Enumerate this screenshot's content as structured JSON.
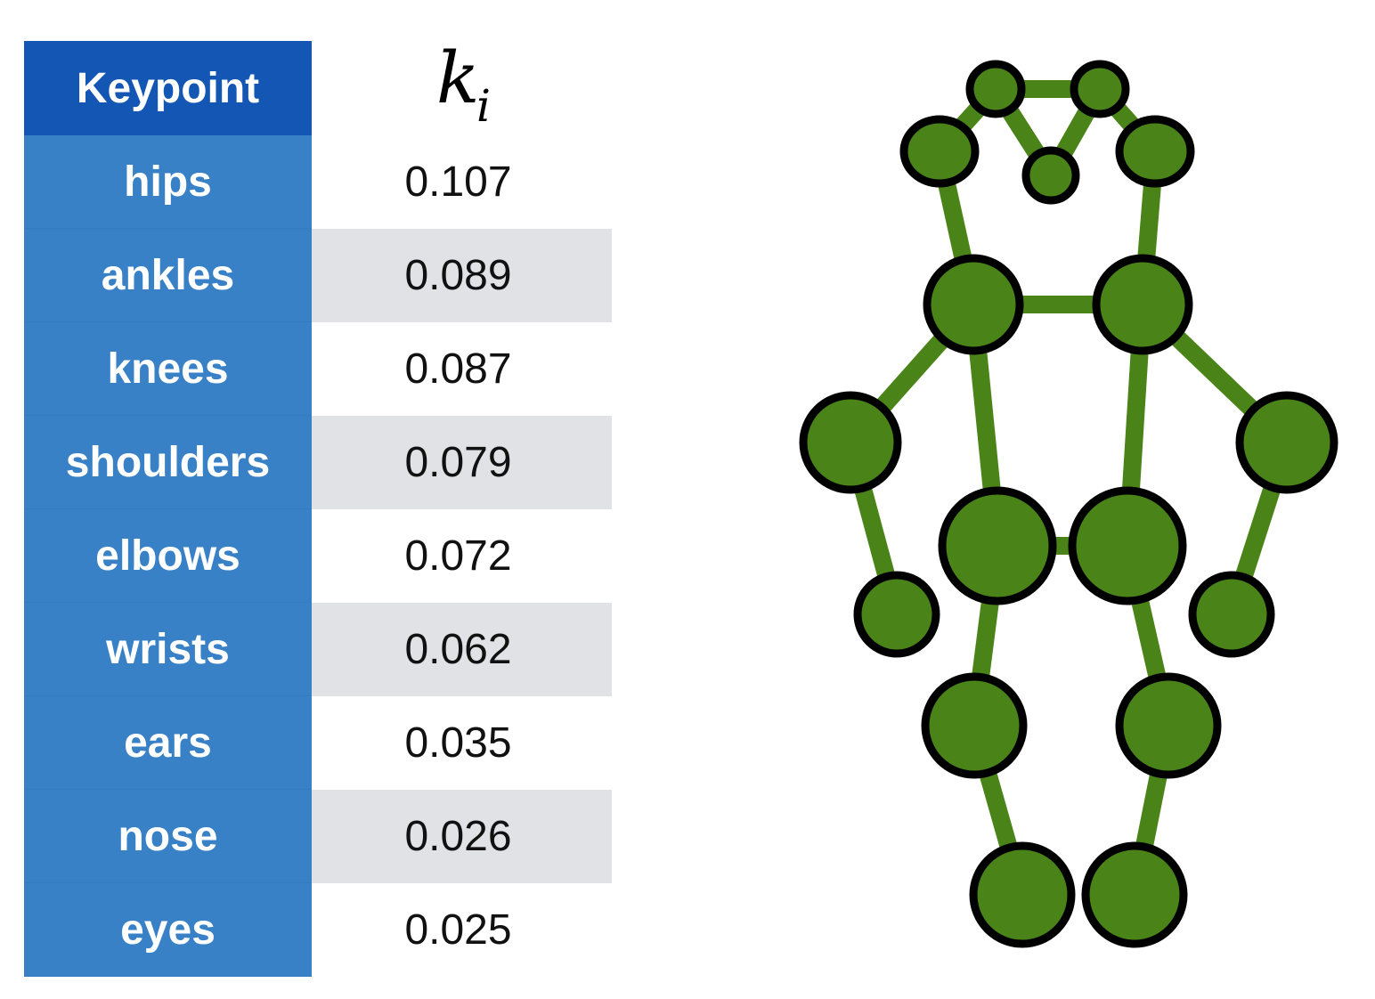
{
  "table": {
    "header": {
      "keypoint": "Keypoint",
      "k_symbol": "k",
      "k_subscript": "i"
    },
    "rows": [
      {
        "keypoint": "hips",
        "k": "0.107"
      },
      {
        "keypoint": "ankles",
        "k": "0.089"
      },
      {
        "keypoint": "knees",
        "k": "0.087"
      },
      {
        "keypoint": "shoulders",
        "k": "0.079"
      },
      {
        "keypoint": "elbows",
        "k": "0.072"
      },
      {
        "keypoint": "wrists",
        "k": "0.062"
      },
      {
        "keypoint": "ears",
        "k": "0.035"
      },
      {
        "keypoint": "nose",
        "k": "0.026"
      },
      {
        "keypoint": "eyes",
        "k": "0.025"
      }
    ]
  },
  "colors": {
    "header_bg": "#1356b3",
    "row_bg": "#3881c7",
    "shade_bg": "#e1e2e6",
    "skeleton_fill": "#4a8418",
    "skeleton_stroke": "#000000"
  }
}
